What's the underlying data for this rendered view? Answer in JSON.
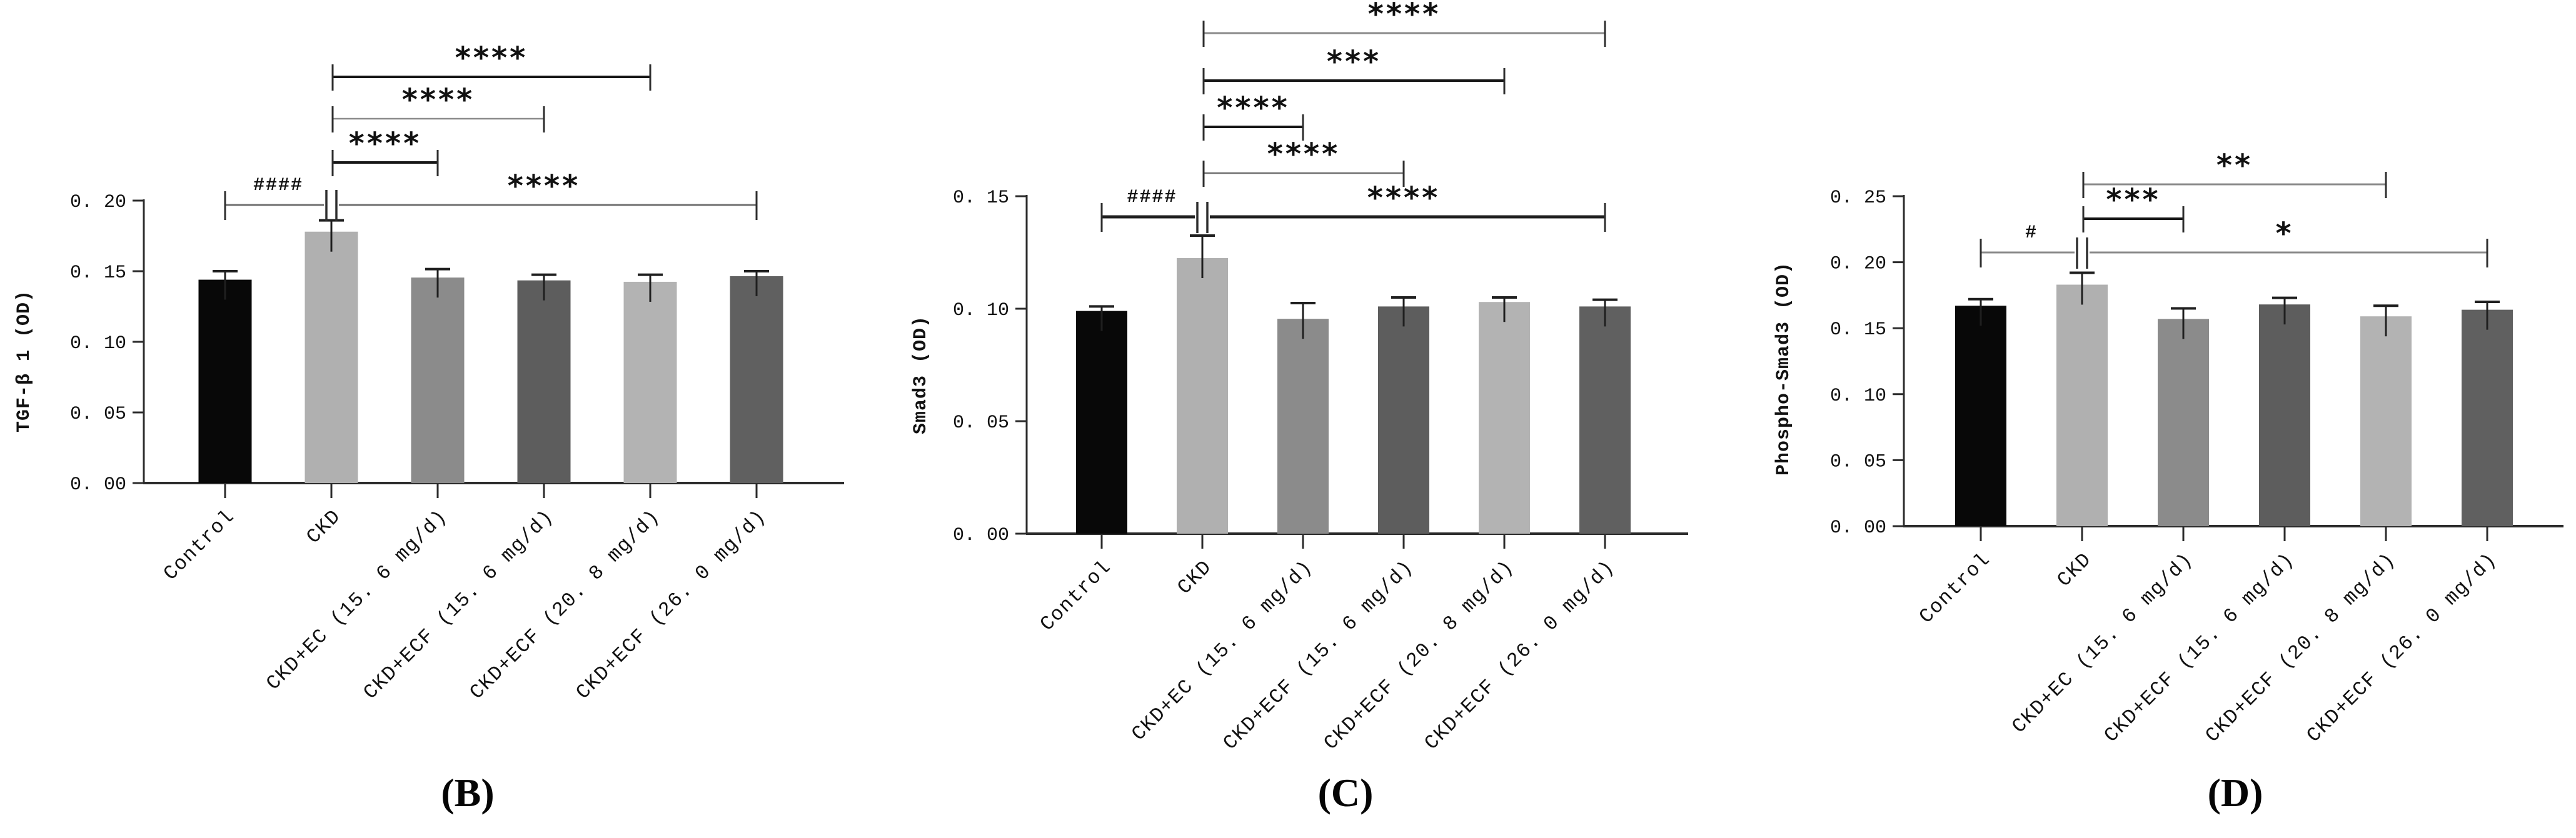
{
  "figure": {
    "background": "#ffffff",
    "text_color": "#111111",
    "axis_color": "#2b2b2b",
    "error_bar_color": "#1f1f1f"
  },
  "chart_data": [
    {
      "type": "bar",
      "panel_label": "(B)",
      "ylabel": "TGF-β 1 (OD)",
      "ylim": [
        0,
        0.2
      ],
      "grid": "off",
      "legend": "none",
      "yticks": [
        {
          "value": 0.0,
          "label": "0. 00"
        },
        {
          "value": 0.05,
          "label": "0. 05"
        },
        {
          "value": 0.1,
          "label": "0. 10"
        },
        {
          "value": 0.15,
          "label": "0. 15"
        },
        {
          "value": 0.2,
          "label": "0. 20"
        }
      ],
      "categories": [
        "Control",
        "CKD",
        "CKD+EC (15. 6 mg/d)",
        "CKD+ECF (15. 6 mg/d)",
        "CKD+ECF (20. 8 mg/d)",
        "CKD+ECF (26. 0 mg/d)"
      ],
      "values": [
        0.144,
        0.178,
        0.1455,
        0.1435,
        0.1425,
        0.1465
      ],
      "errors": [
        0.006,
        0.008,
        0.006,
        0.004,
        0.005,
        0.0035
      ],
      "bar_colors": [
        "#080808",
        "#b0b0b0",
        "#8b8b8b",
        "#5d5d5d",
        "#b3b3b3",
        "#606060"
      ],
      "significance": {
        "brackets": [
          {
            "from": 1,
            "to": 4,
            "label": "****",
            "color": "#161616",
            "thickness": 4
          },
          {
            "from": 1,
            "to": 3,
            "label": "****",
            "color": "#8a8a8a",
            "thickness": 2.5
          },
          {
            "from": 1,
            "to": 2,
            "label": "****",
            "color": "#161616",
            "thickness": 4
          }
        ],
        "baseline_bracket": {
          "from": 0,
          "break_after": 1,
          "to": 5,
          "left_label": "####",
          "right_label": "****",
          "color": "#6f6f6f",
          "thickness": 3
        }
      }
    },
    {
      "type": "bar",
      "panel_label": "(C)",
      "ylabel": "Smad3 (OD)",
      "ylim": [
        0,
        0.15
      ],
      "grid": "off",
      "legend": "none",
      "yticks": [
        {
          "value": 0.0,
          "label": "0. 00"
        },
        {
          "value": 0.05,
          "label": "0. 05"
        },
        {
          "value": 0.1,
          "label": "0. 10"
        },
        {
          "value": 0.15,
          "label": "0. 15"
        }
      ],
      "categories": [
        "Control",
        "CKD",
        "CKD+EC (15. 6 mg/d)",
        "CKD+ECF (15. 6 mg/d)",
        "CKD+ECF (20. 8 mg/d)",
        "CKD+ECF (26. 0 mg/d)"
      ],
      "values": [
        0.099,
        0.1225,
        0.0955,
        0.101,
        0.103,
        0.101
      ],
      "errors": [
        0.002,
        0.01,
        0.007,
        0.004,
        0.002,
        0.003
      ],
      "bar_colors": [
        "#080808",
        "#b0b0b0",
        "#8b8b8b",
        "#5d5d5d",
        "#b3b3b3",
        "#606060"
      ],
      "significance": {
        "brackets": [
          {
            "from": 1,
            "to": 5,
            "label": "****",
            "color": "#8a8a8a",
            "thickness": 3
          },
          {
            "from": 1,
            "to": 4,
            "label": "***",
            "color": "#161616",
            "thickness": 4
          },
          {
            "from": 1,
            "to": 2,
            "label": "****",
            "color": "#161616",
            "thickness": 4
          },
          {
            "from": 1,
            "to": 3,
            "label": "****",
            "color": "#6f6f6f",
            "thickness": 2.5
          }
        ],
        "baseline_bracket": {
          "from": 0,
          "break_after": 1,
          "to": 5,
          "left_label": "####",
          "right_label": "****",
          "color": "#1f1f1f",
          "thickness": 5
        }
      }
    },
    {
      "type": "bar",
      "panel_label": "(D)",
      "ylabel": "Phospho-Smad3 (OD)",
      "ylim": [
        0,
        0.25
      ],
      "grid": "off",
      "legend": "none",
      "yticks": [
        {
          "value": 0.0,
          "label": "0. 00"
        },
        {
          "value": 0.05,
          "label": "0. 05"
        },
        {
          "value": 0.1,
          "label": "0. 10"
        },
        {
          "value": 0.15,
          "label": "0. 15"
        },
        {
          "value": 0.2,
          "label": "0. 20"
        },
        {
          "value": 0.25,
          "label": "0. 25"
        }
      ],
      "categories": [
        "Control",
        "CKD",
        "CKD+EC (15. 6 mg/d)",
        "CKD+ECF (15. 6 mg/d)",
        "CKD+ECF (20. 8 mg/d)",
        "CKD+ECF (26. 0 mg/d)"
      ],
      "values": [
        0.167,
        0.183,
        0.157,
        0.168,
        0.159,
        0.164
      ],
      "errors": [
        0.005,
        0.009,
        0.008,
        0.005,
        0.008,
        0.006
      ],
      "bar_colors": [
        "#080808",
        "#b0b0b0",
        "#8b8b8b",
        "#5d5d5d",
        "#b3b3b3",
        "#606060"
      ],
      "significance": {
        "brackets": [
          {
            "from": 1,
            "to": 4,
            "label": "**",
            "color": "#8a8a8a",
            "thickness": 3
          },
          {
            "from": 1,
            "to": 2,
            "label": "***",
            "color": "#161616",
            "thickness": 4
          }
        ],
        "baseline_bracket": {
          "from": 0,
          "break_after": 1,
          "to": 5,
          "left_label": "#",
          "right_label": "*",
          "color": "#8a8a8a",
          "thickness": 3
        }
      }
    }
  ]
}
